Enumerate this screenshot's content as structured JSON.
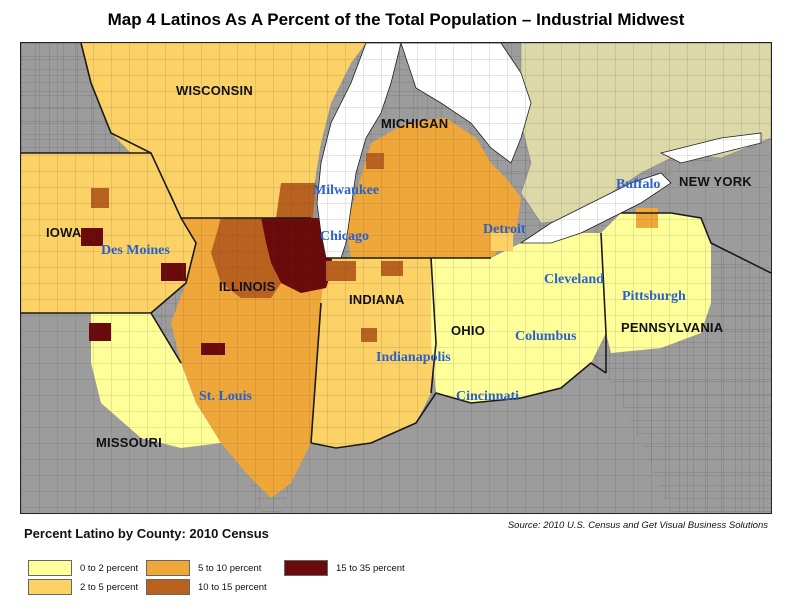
{
  "title": "Map 4   Latinos As A Percent of the Total Population – Industrial Midwest",
  "legend": {
    "title": "Percent Latino by County: 2010 Census",
    "items": [
      {
        "label": "0 to 2 percent",
        "color": "#ffff99"
      },
      {
        "label": "2 to 5 percent",
        "color": "#fcd166"
      },
      {
        "label": "5 to 10 percent",
        "color": "#f0a73a"
      },
      {
        "label": "10 to 15 percent",
        "color": "#b9611f"
      },
      {
        "label": "15 to 35 percent",
        "color": "#6b0a0a"
      }
    ]
  },
  "source": "Source: 2010 U.S. Census and Get Visual Business Solutions",
  "states": [
    "WISCONSIN",
    "MICHIGAN",
    "NEW YORK",
    "IOWA",
    "ILLINOIS",
    "INDIANA",
    "OHIO",
    "PENNSYLVANIA",
    "MISSOURI"
  ],
  "cities": [
    "Milwaukee",
    "Chicago",
    "Detroit",
    "Buffalo",
    "Des Moines",
    "Cleveland",
    "Pittsburgh",
    "Columbus",
    "Indianapolis",
    "St. Louis",
    "Cincinnati"
  ],
  "colors": {
    "outside": "#9c9c9c",
    "water": "#ffffff",
    "canada": "#ddd8a8",
    "boundary": "#222222",
    "city_text": "#2a62c9"
  }
}
